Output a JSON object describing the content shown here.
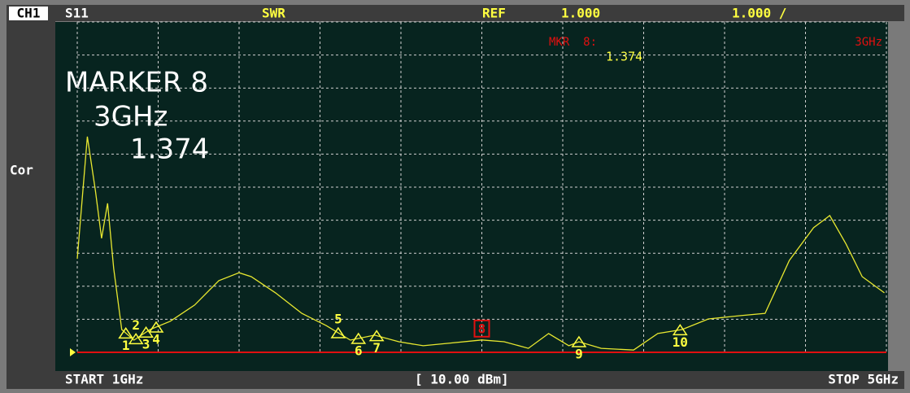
{
  "header": {
    "channel": "CH1",
    "parameter": "S11",
    "format": "SWR",
    "ref_label": "REF",
    "ref_value": "1.000",
    "scale": "1.000 /"
  },
  "side_label": "Cor",
  "footer": {
    "start": "START 1GHz",
    "power": "[ 10.00 dBm]",
    "stop": "STOP 5GHz"
  },
  "chart_data": {
    "type": "line",
    "x": [
      1.0,
      1.05,
      1.09,
      1.12,
      1.15,
      1.18,
      1.22,
      1.28,
      1.36,
      1.46,
      1.58,
      1.7,
      1.8,
      1.86,
      1.98,
      2.11,
      2.23,
      2.35,
      2.47,
      2.59,
      2.71,
      2.83,
      3.0,
      3.11,
      3.23,
      3.33,
      3.43,
      3.48,
      3.59,
      3.75,
      3.87,
      3.99,
      4.12,
      4.28,
      4.4,
      4.52,
      4.64,
      4.72,
      4.8,
      4.88,
      4.99
    ],
    "series": [
      {
        "color": "#e8e830",
        "values": [
          3.83,
          7.53,
          5.88,
          4.45,
          5.51,
          3.54,
          1.69,
          1.37,
          1.69,
          1.94,
          2.43,
          3.17,
          3.41,
          3.29,
          2.8,
          2.18,
          1.81,
          1.37,
          1.52,
          1.32,
          1.2,
          1.27,
          1.374,
          1.32,
          1.12,
          1.57,
          1.2,
          1.32,
          1.12,
          1.07,
          1.57,
          1.69,
          2.01,
          2.11,
          2.18,
          3.78,
          4.77,
          5.14,
          4.28,
          3.29,
          2.8
        ]
      }
    ],
    "xlim": [
      1,
      5
    ],
    "ylim": [
      1,
      11
    ],
    "xticks": [
      1,
      1.4,
      1.8,
      2.2,
      2.6,
      3,
      3.4,
      3.8,
      4.2,
      4.6,
      5
    ],
    "yticks": [
      1,
      2,
      3,
      4,
      5,
      6,
      7,
      8,
      9,
      10,
      11
    ],
    "grid": true,
    "reference_value": 1,
    "reference_color": "#e01010",
    "markers": [
      {
        "label": "1",
        "x": 1.24
      },
      {
        "label": "2",
        "x": 1.29
      },
      {
        "label": "3",
        "x": 1.34
      },
      {
        "label": "4",
        "x": 1.39
      },
      {
        "label": "5",
        "x": 2.29
      },
      {
        "label": "6",
        "x": 2.39
      },
      {
        "label": "7",
        "x": 2.48
      },
      {
        "label": "8",
        "x": 3
      },
      {
        "label": "9",
        "x": 3.48
      },
      {
        "label": "10",
        "x": 3.98
      }
    ],
    "active_marker": {
      "top_label": "MKR  8:",
      "top_value": "1.374",
      "top_freq": "3GHz",
      "title": "MARKER 8",
      "freq": "3GHz",
      "value": "1.374"
    }
  }
}
